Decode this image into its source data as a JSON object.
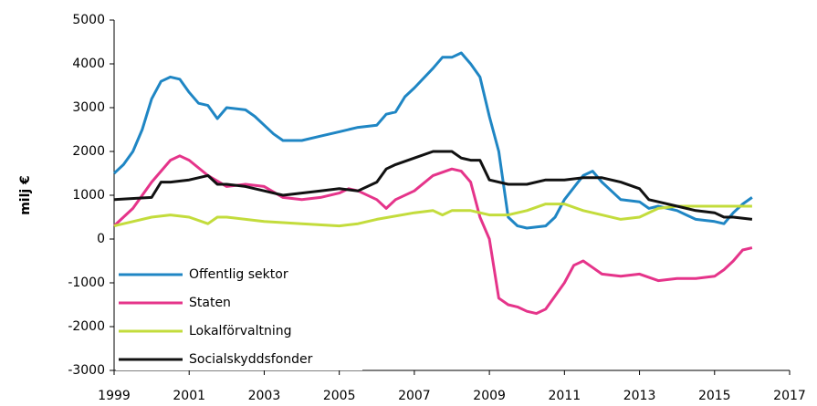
{
  "chart_data": {
    "type": "line",
    "y_label": "milj €",
    "xlim": [
      1999,
      2017
    ],
    "xticks": [
      1999,
      2001,
      2003,
      2005,
      2007,
      2009,
      2011,
      2013,
      2015,
      2017
    ],
    "ylim": [
      -3000,
      5000
    ],
    "yticks": [
      -3000,
      -2000,
      -1000,
      0,
      1000,
      2000,
      3000,
      4000,
      5000
    ],
    "grid": false,
    "legend": "lower left",
    "series": [
      {
        "name": "Offentlig sektor",
        "color": "#1f86c4",
        "x": [
          1999,
          1999.25,
          1999.5,
          1999.75,
          2000,
          2000.25,
          2000.5,
          2000.75,
          2001,
          2001.25,
          2001.5,
          2001.75,
          2002,
          2002.5,
          2002.75,
          2003,
          2003.25,
          2003.5,
          2004,
          2004.5,
          2005,
          2005.5,
          2006,
          2006.25,
          2006.5,
          2006.75,
          2007,
          2007.5,
          2007.75,
          2008,
          2008.25,
          2008.5,
          2008.75,
          2009,
          2009.25,
          2009.5,
          2009.75,
          2010,
          2010.5,
          2010.75,
          2011,
          2011.5,
          2011.75,
          2012,
          2012.25,
          2012.5,
          2013,
          2013.25,
          2013.5,
          2014,
          2014.25,
          2014.5,
          2015,
          2015.25,
          2015.5,
          2015.75,
          2016
        ],
        "values": [
          1500,
          1700,
          2000,
          2500,
          3200,
          3600,
          3700,
          3650,
          3350,
          3100,
          3050,
          2750,
          3000,
          2950,
          2800,
          2600,
          2400,
          2250,
          2250,
          2350,
          2450,
          2550,
          2600,
          2850,
          2900,
          3250,
          3450,
          3900,
          4150,
          4150,
          4250,
          4000,
          3700,
          2800,
          2000,
          500,
          300,
          250,
          300,
          500,
          900,
          1450,
          1550,
          1300,
          1100,
          900,
          850,
          700,
          750,
          650,
          550,
          450,
          400,
          350,
          600,
          800,
          950
        ]
      },
      {
        "name": "Staten",
        "color": "#e5348a",
        "x": [
          1999,
          1999.5,
          2000,
          2000.5,
          2000.75,
          2001,
          2001.5,
          2002,
          2002.5,
          2003,
          2003.5,
          2004,
          2004.5,
          2005,
          2005.25,
          2005.5,
          2006,
          2006.25,
          2006.5,
          2007,
          2007.5,
          2008,
          2008.25,
          2008.5,
          2008.75,
          2009,
          2009.25,
          2009.5,
          2009.75,
          2010,
          2010.25,
          2010.5,
          2010.75,
          2011,
          2011.25,
          2011.5,
          2011.75,
          2012,
          2012.5,
          2013,
          2013.5,
          2014,
          2014.5,
          2015,
          2015.25,
          2015.5,
          2015.75,
          2016
        ],
        "values": [
          300,
          700,
          1300,
          1800,
          1900,
          1800,
          1450,
          1200,
          1250,
          1200,
          950,
          900,
          950,
          1050,
          1150,
          1100,
          900,
          700,
          900,
          1100,
          1450,
          1600,
          1550,
          1300,
          500,
          0,
          -1350,
          -1500,
          -1550,
          -1650,
          -1700,
          -1600,
          -1300,
          -1000,
          -600,
          -500,
          -650,
          -800,
          -850,
          -800,
          -950,
          -900,
          -900,
          -850,
          -700,
          -500,
          -250,
          -200
        ]
      },
      {
        "name": "Lokalförvaltning",
        "color": "#c3dc3c",
        "x": [
          1999,
          1999.5,
          2000,
          2000.5,
          2001,
          2001.5,
          2001.75,
          2002,
          2003,
          2004,
          2005,
          2005.5,
          2006,
          2007,
          2007.5,
          2007.75,
          2008,
          2008.5,
          2009,
          2009.5,
          2010,
          2010.5,
          2011,
          2011.5,
          2012,
          2012.5,
          2013,
          2013.5,
          2014,
          2014.5,
          2015,
          2015.5,
          2016
        ],
        "values": [
          300,
          400,
          500,
          550,
          500,
          350,
          500,
          500,
          400,
          350,
          300,
          350,
          450,
          600,
          650,
          550,
          650,
          650,
          550,
          550,
          650,
          800,
          800,
          650,
          550,
          450,
          500,
          700,
          750,
          750,
          750,
          750,
          750
        ]
      },
      {
        "name": "Socialskyddsfonder",
        "color": "#111111",
        "x": [
          1999,
          2000,
          2000.25,
          2000.5,
          2001,
          2001.5,
          2001.75,
          2002,
          2002.5,
          2003,
          2003.5,
          2004,
          2004.5,
          2005,
          2005.5,
          2006,
          2006.25,
          2006.5,
          2007,
          2007.5,
          2008,
          2008.25,
          2008.5,
          2008.75,
          2009,
          2009.5,
          2010,
          2010.5,
          2011,
          2011.5,
          2012,
          2012.5,
          2013,
          2013.25,
          2013.5,
          2014,
          2014.5,
          2015,
          2015.25,
          2015.5,
          2016
        ],
        "values": [
          900,
          950,
          1300,
          1300,
          1350,
          1450,
          1250,
          1250,
          1200,
          1100,
          1000,
          1050,
          1100,
          1150,
          1100,
          1300,
          1600,
          1700,
          1850,
          2000,
          2000,
          1850,
          1800,
          1800,
          1350,
          1250,
          1250,
          1350,
          1350,
          1400,
          1400,
          1300,
          1150,
          900,
          850,
          750,
          650,
          600,
          500,
          500,
          450
        ]
      }
    ]
  }
}
